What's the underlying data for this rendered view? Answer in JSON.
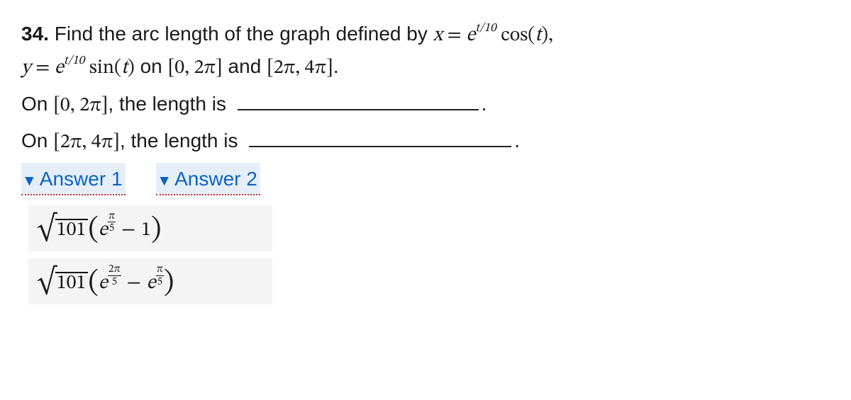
{
  "problem": {
    "number": "34.",
    "intro_a": "Find the arc length of the graph defined by ",
    "x_lhs": "x",
    "equals": " = ",
    "x_rhs_base": "e",
    "x_rhs_exp": "t/10",
    "x_rhs_trig": " cos(",
    "x_rhs_arg": "t",
    "x_rhs_close": "),",
    "y_lhs": "y",
    "y_rhs_base": "e",
    "y_rhs_exp": "t/10",
    "y_rhs_trig": " sin(",
    "y_rhs_arg": "t",
    "y_rhs_close": ")",
    "on_text": " on ",
    "interval1": "[0, 2π]",
    "and_text": " and ",
    "interval2": "[2π, 4π]",
    "period": "."
  },
  "prompts": {
    "line1_a": "On ",
    "line1_int": "[0, 2π]",
    "line1_b": ", the length is ",
    "line1_end": ".",
    "line2_a": "On ",
    "line2_int": "[2π, 4π]",
    "line2_b": ", the length is ",
    "line2_end": ".",
    "blank_widths": {
      "b1": 340,
      "b2": 370
    }
  },
  "links": {
    "answer1": "Answer 1",
    "answer2": "Answer 2",
    "triangle": "▼"
  },
  "answers": {
    "sqrt_val": "101",
    "a1": {
      "e1_num": "π",
      "e1_den": "5",
      "minus": "−",
      "tail": "1"
    },
    "a2": {
      "e1_num": "2π",
      "e1_den": "5",
      "minus": "−",
      "e2_num": "π",
      "e2_den": "5"
    }
  },
  "style": {
    "link_color": "#0b62c4",
    "link_bg": "rgba(11,98,196,0.10)",
    "link_underline": "#c2372f",
    "answer_bg": "#f4f4f4",
    "text_color": "#1a1a1a"
  }
}
